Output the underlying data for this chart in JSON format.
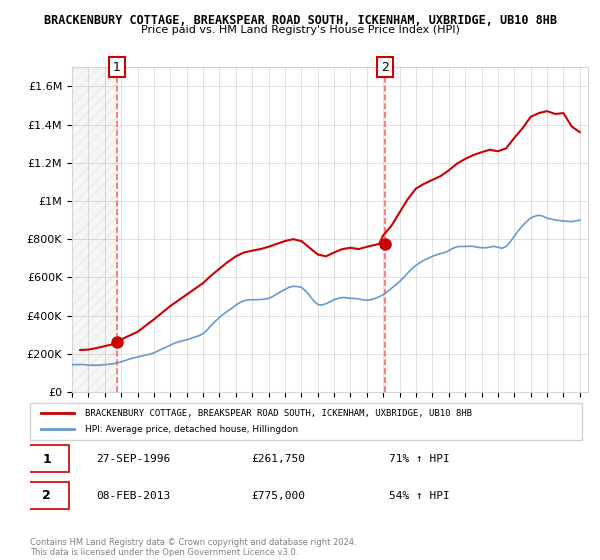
{
  "title": "BRACKENBURY COTTAGE, BREAKSPEAR ROAD SOUTH, ICKENHAM, UXBRIDGE, UB10 8HB",
  "subtitle": "Price paid vs. HM Land Registry's House Price Index (HPI)",
  "sale1_date": "27-SEP-1996",
  "sale1_price": 261750,
  "sale1_label": "1",
  "sale1_pct": "71% ↑ HPI",
  "sale2_date": "08-FEB-2013",
  "sale2_price": 775000,
  "sale2_label": "2",
  "sale2_pct": "54% ↑ HPI",
  "legend_property": "BRACKENBURY COTTAGE, BREAKSPEAR ROAD SOUTH, ICKENHAM, UXBRIDGE, UB10 8HB",
  "legend_hpi": "HPI: Average price, detached house, Hillingdon",
  "footer": "Contains HM Land Registry data © Crown copyright and database right 2024.\nThis data is licensed under the Open Government Licence v3.0.",
  "property_color": "#cc0000",
  "hpi_color": "#6699cc",
  "vline_color": "#ff6666",
  "ylim": [
    0,
    1700000
  ],
  "xlim_start": 1994.0,
  "xlim_end": 2025.5,
  "hpi_data": {
    "years": [
      1994.0,
      1994.25,
      1994.5,
      1994.75,
      1995.0,
      1995.25,
      1995.5,
      1995.75,
      1996.0,
      1996.25,
      1996.5,
      1996.75,
      1997.0,
      1997.25,
      1997.5,
      1997.75,
      1998.0,
      1998.25,
      1998.5,
      1998.75,
      1999.0,
      1999.25,
      1999.5,
      1999.75,
      2000.0,
      2000.25,
      2000.5,
      2000.75,
      2001.0,
      2001.25,
      2001.5,
      2001.75,
      2002.0,
      2002.25,
      2002.5,
      2002.75,
      2003.0,
      2003.25,
      2003.5,
      2003.75,
      2004.0,
      2004.25,
      2004.5,
      2004.75,
      2005.0,
      2005.25,
      2005.5,
      2005.75,
      2006.0,
      2006.25,
      2006.5,
      2006.75,
      2007.0,
      2007.25,
      2007.5,
      2007.75,
      2008.0,
      2008.25,
      2008.5,
      2008.75,
      2009.0,
      2009.25,
      2009.5,
      2009.75,
      2010.0,
      2010.25,
      2010.5,
      2010.75,
      2011.0,
      2011.25,
      2011.5,
      2011.75,
      2012.0,
      2012.25,
      2012.5,
      2012.75,
      2013.0,
      2013.25,
      2013.5,
      2013.75,
      2014.0,
      2014.25,
      2014.5,
      2014.75,
      2015.0,
      2015.25,
      2015.5,
      2015.75,
      2016.0,
      2016.25,
      2016.5,
      2016.75,
      2017.0,
      2017.25,
      2017.5,
      2017.75,
      2018.0,
      2018.25,
      2018.5,
      2018.75,
      2019.0,
      2019.25,
      2019.5,
      2019.75,
      2020.0,
      2020.25,
      2020.5,
      2020.75,
      2021.0,
      2021.25,
      2021.5,
      2021.75,
      2022.0,
      2022.25,
      2022.5,
      2022.75,
      2023.0,
      2023.25,
      2023.5,
      2023.75,
      2024.0,
      2024.25,
      2024.5,
      2024.75,
      2025.0
    ],
    "values": [
      143000,
      143500,
      144000,
      143000,
      141000,
      140000,
      140500,
      141000,
      143000,
      145000,
      148000,
      152000,
      158000,
      165000,
      172000,
      178000,
      183000,
      188000,
      193000,
      198000,
      205000,
      215000,
      225000,
      235000,
      245000,
      255000,
      263000,
      268000,
      273000,
      280000,
      288000,
      295000,
      305000,
      325000,
      348000,
      370000,
      390000,
      408000,
      423000,
      438000,
      455000,
      468000,
      478000,
      482000,
      483000,
      483000,
      484000,
      486000,
      490000,
      500000,
      513000,
      525000,
      537000,
      548000,
      553000,
      552000,
      548000,
      530000,
      505000,
      478000,
      458000,
      455000,
      462000,
      472000,
      483000,
      490000,
      495000,
      493000,
      490000,
      490000,
      487000,
      483000,
      480000,
      483000,
      490000,
      498000,
      510000,
      525000,
      543000,
      560000,
      578000,
      600000,
      623000,
      645000,
      663000,
      678000,
      690000,
      700000,
      710000,
      718000,
      725000,
      730000,
      740000,
      752000,
      760000,
      762000,
      762000,
      763000,
      762000,
      758000,
      755000,
      755000,
      758000,
      762000,
      758000,
      752000,
      762000,
      785000,
      815000,
      845000,
      870000,
      892000,
      910000,
      920000,
      925000,
      920000,
      910000,
      905000,
      900000,
      898000,
      895000,
      893000,
      892000,
      895000,
      900000
    ]
  },
  "property_data": {
    "years": [
      1994.5,
      1995.0,
      1995.5,
      1996.0,
      1996.5,
      1996.75,
      1997.0,
      1997.5,
      1998.0,
      1999.0,
      2000.0,
      2001.0,
      2002.0,
      2002.5,
      2003.0,
      2003.5,
      2004.0,
      2004.5,
      2005.0,
      2005.5,
      2006.0,
      2006.5,
      2007.0,
      2007.5,
      2008.0,
      2008.5,
      2009.0,
      2009.5,
      2010.0,
      2010.5,
      2011.0,
      2011.5,
      2012.0,
      2012.75,
      2013.0,
      2013.5,
      2014.0,
      2014.5,
      2015.0,
      2015.5,
      2016.0,
      2016.5,
      2017.0,
      2017.5,
      2018.0,
      2018.5,
      2019.0,
      2019.5,
      2020.0,
      2020.5,
      2021.0,
      2021.5,
      2022.0,
      2022.5,
      2023.0,
      2023.5,
      2024.0,
      2024.5,
      2025.0
    ],
    "values": [
      220000,
      222000,
      230000,
      240000,
      250000,
      261750,
      275000,
      295000,
      315000,
      380000,
      450000,
      510000,
      570000,
      610000,
      645000,
      680000,
      710000,
      730000,
      740000,
      748000,
      760000,
      775000,
      790000,
      800000,
      790000,
      755000,
      720000,
      710000,
      730000,
      748000,
      755000,
      748000,
      760000,
      775000,
      820000,
      870000,
      940000,
      1010000,
      1065000,
      1090000,
      1110000,
      1130000,
      1160000,
      1195000,
      1220000,
      1240000,
      1255000,
      1268000,
      1260000,
      1275000,
      1330000,
      1380000,
      1440000,
      1460000,
      1470000,
      1455000,
      1460000,
      1390000,
      1360000
    ]
  },
  "sale1_year": 1996.742,
  "sale2_year": 2013.1
}
